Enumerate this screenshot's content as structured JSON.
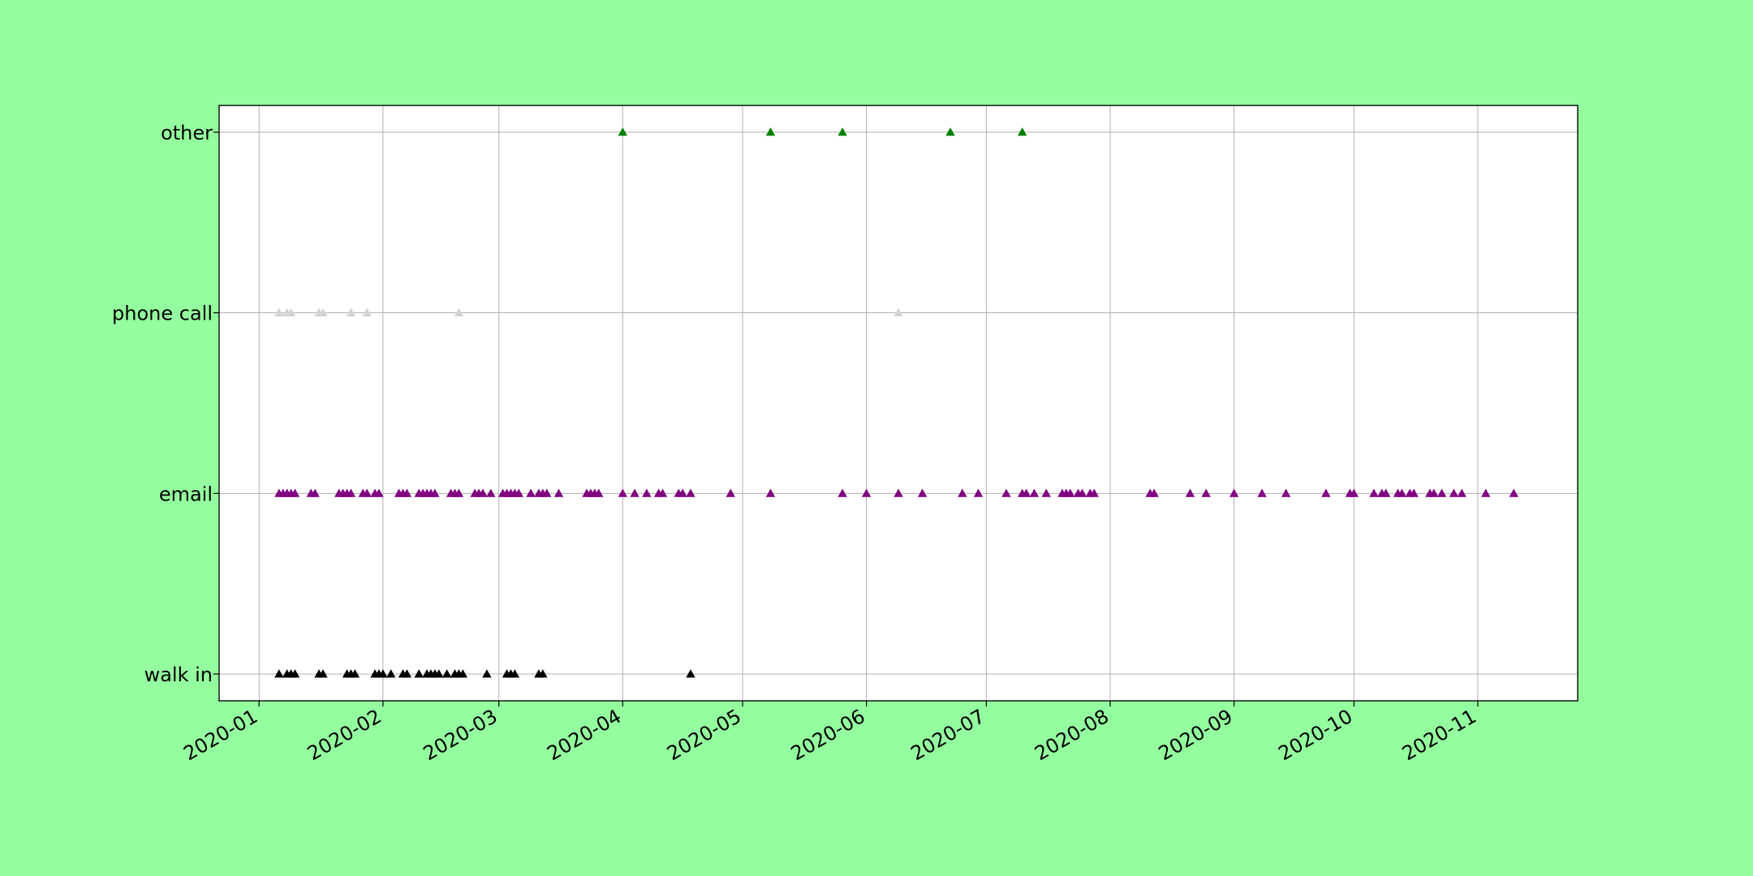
{
  "chart_data": {
    "type": "scatter",
    "title": "",
    "xlabel": "",
    "ylabel": "",
    "x_axis": {
      "scale": "date",
      "range": [
        "2019-12-22",
        "2020-11-26"
      ],
      "ticks": [
        "2020-01",
        "2020-02",
        "2020-03",
        "2020-04",
        "2020-05",
        "2020-06",
        "2020-07",
        "2020-08",
        "2020-09",
        "2020-10",
        "2020-11"
      ],
      "tick_label_rotation_deg": 30
    },
    "y_axis": {
      "scale": "categorical",
      "categories": [
        "walk in",
        "email",
        "phone call",
        "other"
      ]
    },
    "grid": true,
    "legend": "none",
    "marker": "triangle-up",
    "series": [
      {
        "category": "other",
        "color": "#008000",
        "x": [
          "2020-04-01",
          "2020-05-08",
          "2020-05-26",
          "2020-06-22",
          "2020-07-10"
        ]
      },
      {
        "category": "phone call",
        "color": "#d3d3d3",
        "x": [
          "2020-01-06",
          "2020-01-08",
          "2020-01-09",
          "2020-01-16",
          "2020-01-17",
          "2020-01-24",
          "2020-01-28",
          "2020-02-20",
          "2020-06-09"
        ]
      },
      {
        "category": "email",
        "color": "#800080",
        "x": [
          "2020-01-06",
          "2020-01-07",
          "2020-01-08",
          "2020-01-09",
          "2020-01-10",
          "2020-01-14",
          "2020-01-15",
          "2020-01-21",
          "2020-01-22",
          "2020-01-23",
          "2020-01-24",
          "2020-01-27",
          "2020-01-28",
          "2020-01-30",
          "2020-01-31",
          "2020-02-05",
          "2020-02-06",
          "2020-02-07",
          "2020-02-10",
          "2020-02-11",
          "2020-02-12",
          "2020-02-13",
          "2020-02-14",
          "2020-02-18",
          "2020-02-19",
          "2020-02-20",
          "2020-02-24",
          "2020-02-25",
          "2020-02-26",
          "2020-02-28",
          "2020-03-02",
          "2020-03-03",
          "2020-03-04",
          "2020-03-05",
          "2020-03-06",
          "2020-03-09",
          "2020-03-11",
          "2020-03-12",
          "2020-03-13",
          "2020-03-16",
          "2020-03-23",
          "2020-03-24",
          "2020-03-25",
          "2020-03-26",
          "2020-04-01",
          "2020-04-04",
          "2020-04-07",
          "2020-04-10",
          "2020-04-11",
          "2020-04-15",
          "2020-04-16",
          "2020-04-18",
          "2020-04-28",
          "2020-05-08",
          "2020-05-26",
          "2020-06-01",
          "2020-06-09",
          "2020-06-15",
          "2020-06-25",
          "2020-06-29",
          "2020-07-06",
          "2020-07-10",
          "2020-07-11",
          "2020-07-13",
          "2020-07-16",
          "2020-07-20",
          "2020-07-21",
          "2020-07-22",
          "2020-07-24",
          "2020-07-25",
          "2020-07-27",
          "2020-07-28",
          "2020-08-11",
          "2020-08-12",
          "2020-08-21",
          "2020-08-25",
          "2020-09-01",
          "2020-09-08",
          "2020-09-14",
          "2020-09-24",
          "2020-09-30",
          "2020-10-01",
          "2020-10-06",
          "2020-10-08",
          "2020-10-09",
          "2020-10-12",
          "2020-10-13",
          "2020-10-15",
          "2020-10-16",
          "2020-10-20",
          "2020-10-21",
          "2020-10-23",
          "2020-10-26",
          "2020-10-28",
          "2020-11-03",
          "2020-11-10"
        ]
      },
      {
        "category": "walk in",
        "color": "#000000",
        "x": [
          "2020-01-06",
          "2020-01-08",
          "2020-01-09",
          "2020-01-10",
          "2020-01-16",
          "2020-01-17",
          "2020-01-23",
          "2020-01-24",
          "2020-01-25",
          "2020-01-30",
          "2020-01-31",
          "2020-02-01",
          "2020-02-03",
          "2020-02-06",
          "2020-02-07",
          "2020-02-10",
          "2020-02-12",
          "2020-02-13",
          "2020-02-14",
          "2020-02-15",
          "2020-02-17",
          "2020-02-19",
          "2020-02-20",
          "2020-02-21",
          "2020-02-27",
          "2020-03-03",
          "2020-03-04",
          "2020-03-05",
          "2020-03-11",
          "2020-03-12",
          "2020-04-18"
        ]
      }
    ]
  }
}
